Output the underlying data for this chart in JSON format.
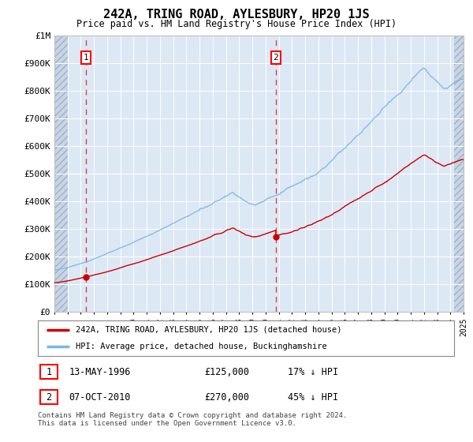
{
  "title": "242A, TRING ROAD, AYLESBURY, HP20 1JS",
  "subtitle": "Price paid vs. HM Land Registry's House Price Index (HPI)",
  "ylim": [
    0,
    1000000
  ],
  "yticks": [
    0,
    100000,
    200000,
    300000,
    400000,
    500000,
    600000,
    700000,
    800000,
    900000,
    1000000
  ],
  "ytick_labels": [
    "£0",
    "£100K",
    "£200K",
    "£300K",
    "£400K",
    "£500K",
    "£600K",
    "£700K",
    "£800K",
    "£900K",
    "£1M"
  ],
  "hpi_color": "#7ab8e8",
  "price_color": "#cc0000",
  "sale1_date": 1996.37,
  "sale1_price": 125000,
  "sale2_date": 2010.77,
  "sale2_price": 270000,
  "legend_label_price": "242A, TRING ROAD, AYLESBURY, HP20 1JS (detached house)",
  "legend_label_hpi": "HPI: Average price, detached house, Buckinghamshire",
  "footnote": "Contains HM Land Registry data © Crown copyright and database right 2024.\nThis data is licensed under the Open Government Licence v3.0.",
  "plot_bg": "#dde8f5",
  "grid_color": "#c0cfe0",
  "hatch_bg": "#c8d5e5"
}
